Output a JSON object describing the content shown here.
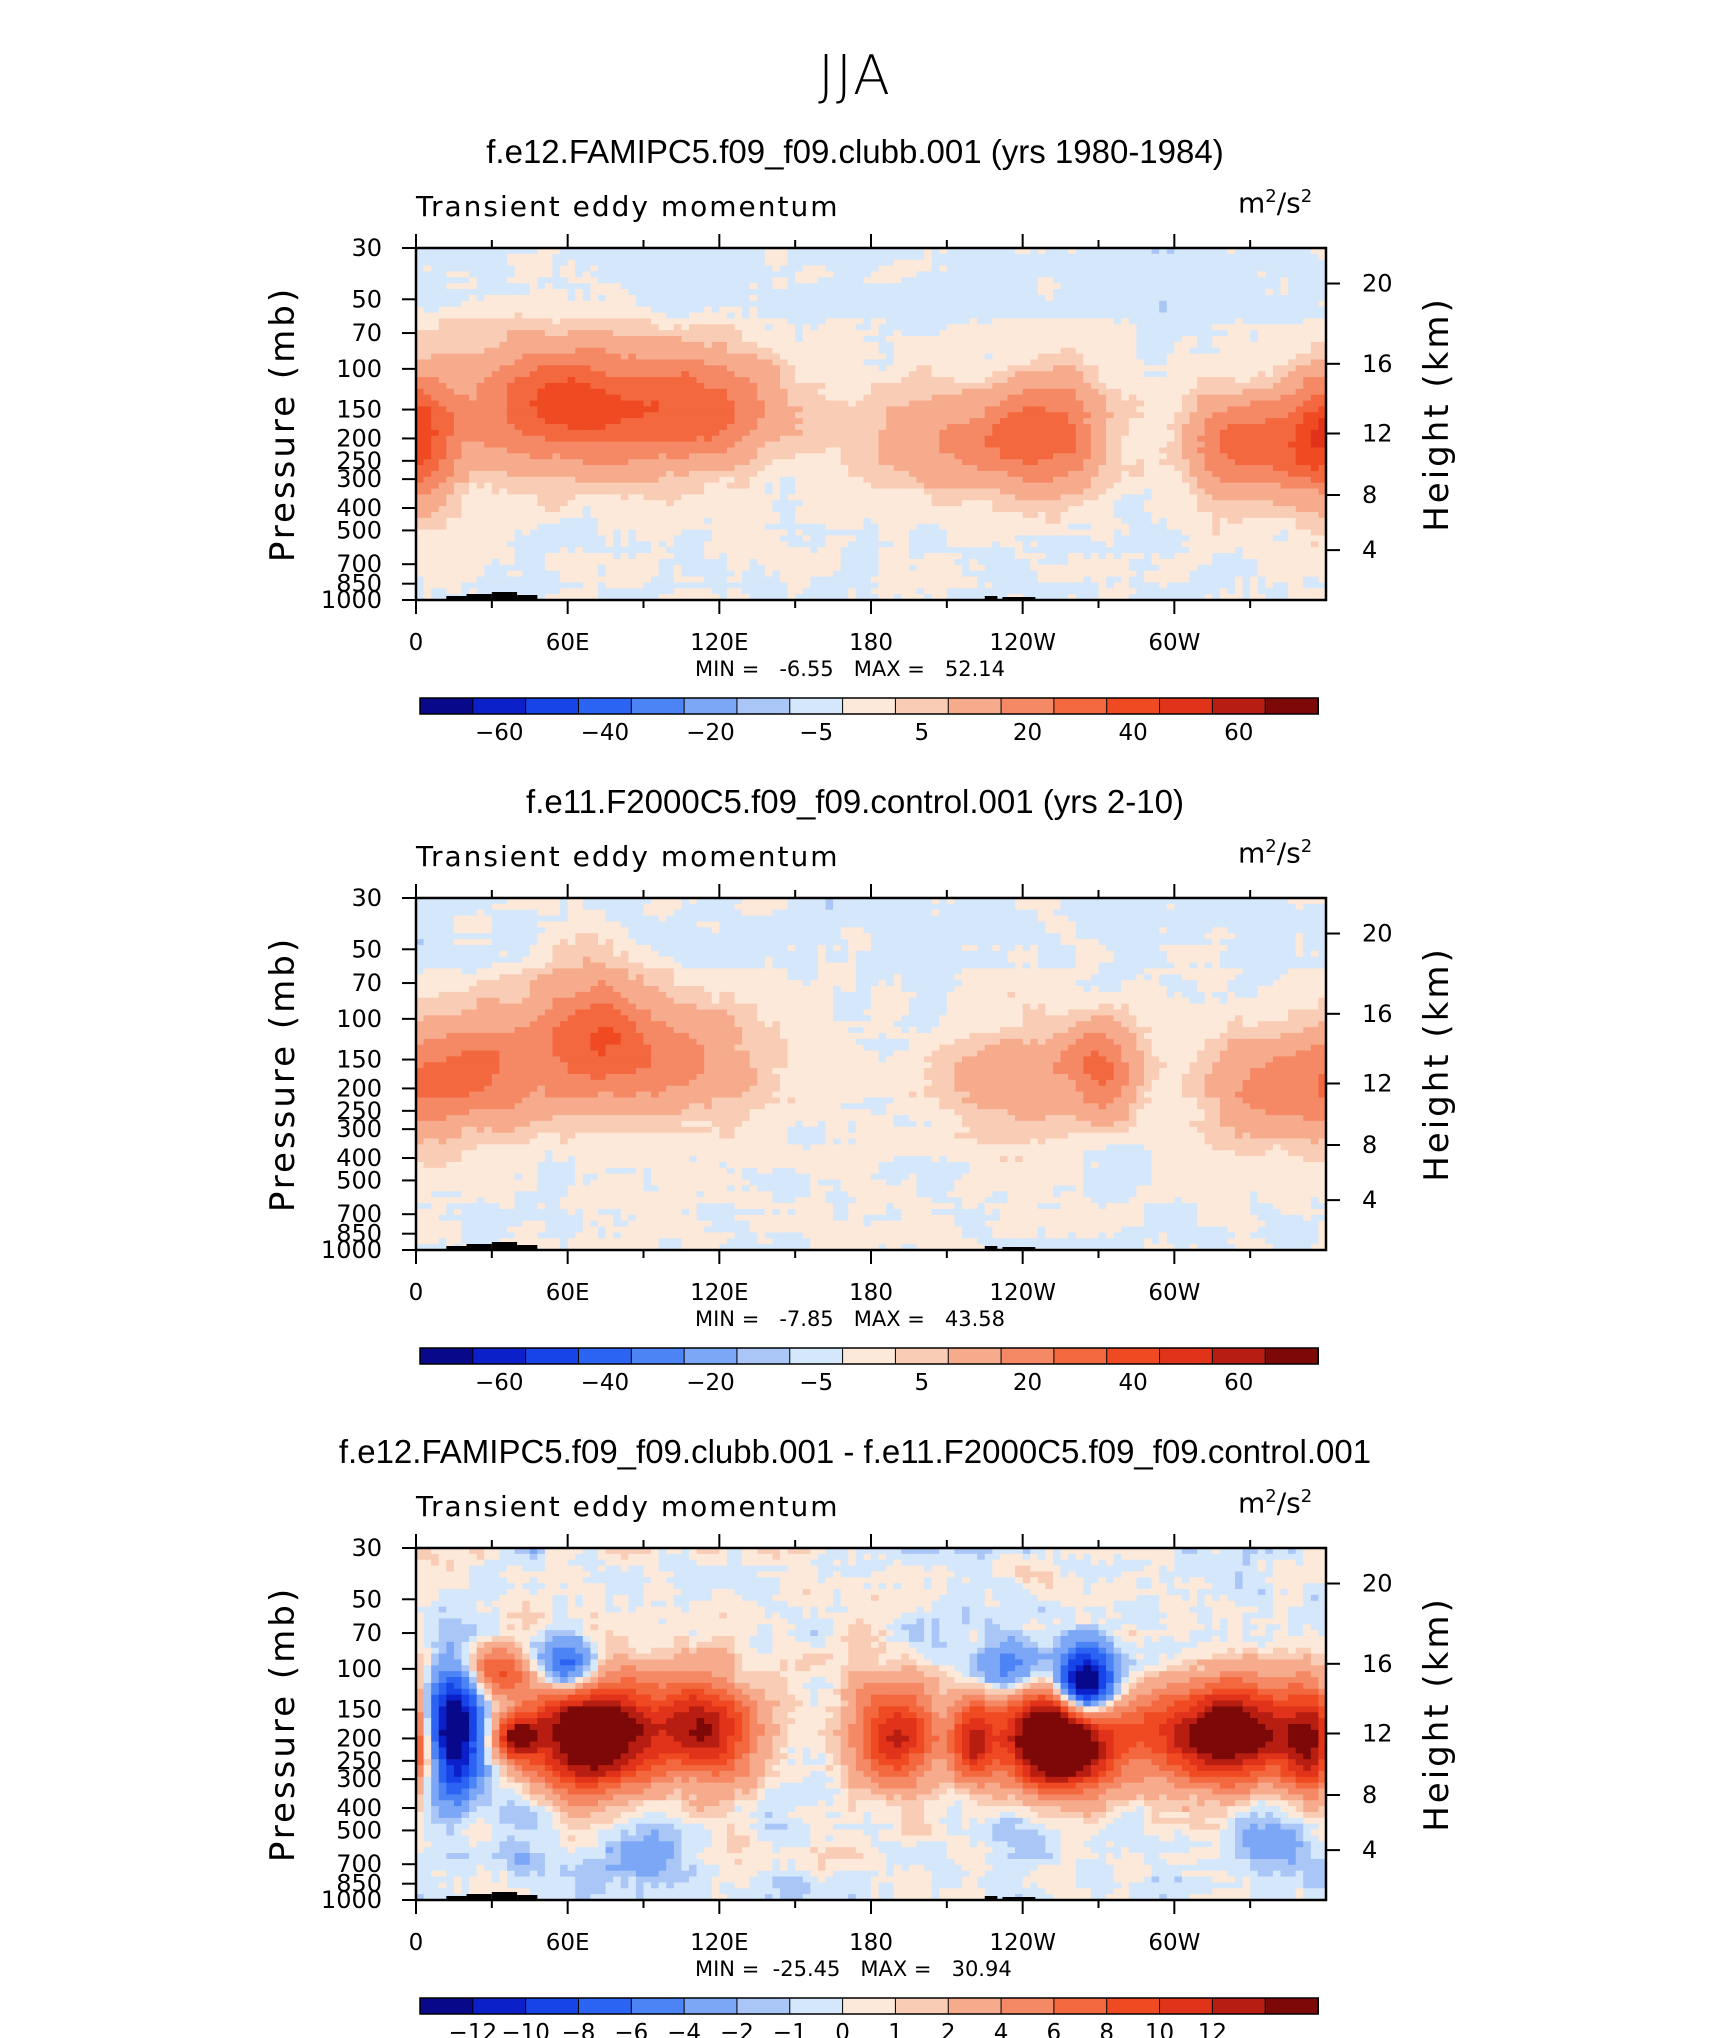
{
  "page": {
    "title": "JJA"
  },
  "chart_data": [
    {
      "type": "heatmap",
      "title": "f.e12.FAMIPC5.f09_f09.clubb.001 (yrs 1980-1984)",
      "variable": "Transient eddy momentum",
      "units": "m²/s²",
      "units_base": "m",
      "units_exp": "2",
      "units_mid": "/s",
      "units_exp2": "2",
      "xlabel": "",
      "ylabel_left": "Pressure (mb)",
      "ylabel_right": "Height (km)",
      "x_ticks": [
        "0",
        "60E",
        "120E",
        "180",
        "120W",
        "60W"
      ],
      "y_left_ticks": [
        "30",
        "50",
        "70",
        "100",
        "150",
        "200",
        "250",
        "300",
        "400",
        "500",
        "700",
        "850",
        "1000"
      ],
      "y_right_ticks": [
        "20",
        "16",
        "12",
        "8",
        "4"
      ],
      "stats": {
        "min_label": "MIN =",
        "min": "-6.55",
        "max_label": "MAX =",
        "max": "52.14"
      },
      "colorbar": {
        "labels": [
          "-60",
          "-40",
          "-20",
          "-5",
          "5",
          "20",
          "40",
          "60"
        ],
        "colors": [
          "#08088a",
          "#0b20c8",
          "#1744e8",
          "#2b63f2",
          "#4d84f5",
          "#7ca6f6",
          "#a9c6f6",
          "#d5e7fb",
          "#fde9d9",
          "#f9cdb5",
          "#f7ab8d",
          "#f58965",
          "#f3683e",
          "#ef4a22",
          "#e0331a",
          "#b71d10",
          "#7c0808"
        ]
      },
      "features": [
        {
          "lon": 25,
          "p": 150,
          "wx": 16,
          "wy": 0.55,
          "v": 14
        },
        {
          "lon": 70,
          "p": 150,
          "wx": 22,
          "wy": 0.45,
          "v": 34
        },
        {
          "lon": 115,
          "p": 150,
          "wx": 22,
          "wy": 0.4,
          "v": 32
        },
        {
          "lon": 50,
          "p": 130,
          "wx": 14,
          "wy": 0.35,
          "v": 18
        },
        {
          "lon": 2,
          "p": 200,
          "wx": 10,
          "wy": 0.45,
          "v": 26
        },
        {
          "lon": 195,
          "p": 200,
          "wx": 18,
          "wy": 0.45,
          "v": 12
        },
        {
          "lon": 222,
          "p": 210,
          "wx": 14,
          "wy": 0.3,
          "v": 16
        },
        {
          "lon": 250,
          "p": 190,
          "wx": 16,
          "wy": 0.4,
          "v": 36
        },
        {
          "lon": 325,
          "p": 215,
          "wx": 14,
          "wy": 0.35,
          "v": 34
        },
        {
          "lon": 352,
          "p": 200,
          "wx": 12,
          "wy": 0.4,
          "v": 26
        }
      ]
    },
    {
      "type": "heatmap",
      "title": "f.e11.F2000C5.f09_f09.control.001 (yrs 2-10)",
      "variable": "Transient eddy momentum",
      "units": "m²/s²",
      "units_base": "m",
      "units_exp": "2",
      "units_mid": "/s",
      "units_exp2": "2",
      "xlabel": "",
      "ylabel_left": "Pressure (mb)",
      "ylabel_right": "Height (km)",
      "x_ticks": [
        "0",
        "60E",
        "120E",
        "180",
        "120W",
        "60W"
      ],
      "y_left_ticks": [
        "30",
        "50",
        "70",
        "100",
        "150",
        "200",
        "250",
        "300",
        "400",
        "500",
        "700",
        "850",
        "1000"
      ],
      "y_right_ticks": [
        "20",
        "16",
        "12",
        "8",
        "4"
      ],
      "stats": {
        "min_label": "MIN =",
        "min": "-7.85",
        "max_label": "MAX =",
        "max": "43.58"
      },
      "colorbar": {
        "labels": [
          "-60",
          "-40",
          "-20",
          "-5",
          "5",
          "20",
          "40",
          "60"
        ],
        "colors": [
          "#08088a",
          "#0b20c8",
          "#1744e8",
          "#2b63f2",
          "#4d84f5",
          "#7ca6f6",
          "#a9c6f6",
          "#d5e7fb",
          "#fde9d9",
          "#f9cdb5",
          "#f7ab8d",
          "#f58965",
          "#f3683e",
          "#ef4a22",
          "#e0331a",
          "#b71d10",
          "#7c0808"
        ]
      },
      "features": [
        {
          "lon": 25,
          "p": 170,
          "wx": 18,
          "wy": 0.4,
          "v": 30
        },
        {
          "lon": 70,
          "p": 110,
          "wx": 16,
          "wy": 0.45,
          "v": 30
        },
        {
          "lon": 100,
          "p": 150,
          "wx": 30,
          "wy": 0.4,
          "v": 22
        },
        {
          "lon": 2,
          "p": 200,
          "wx": 10,
          "wy": 0.4,
          "v": 16
        },
        {
          "lon": 240,
          "p": 180,
          "wx": 26,
          "wy": 0.35,
          "v": 18
        },
        {
          "lon": 272,
          "p": 160,
          "wx": 10,
          "wy": 0.3,
          "v": 26
        },
        {
          "lon": 335,
          "p": 200,
          "wx": 16,
          "wy": 0.4,
          "v": 22
        }
      ]
    },
    {
      "type": "heatmap",
      "title": "f.e12.FAMIPC5.f09_f09.clubb.001 - f.e11.F2000C5.f09_f09.control.001",
      "variable": "Transient eddy momentum",
      "units": "m²/s²",
      "units_base": "m",
      "units_exp": "2",
      "units_mid": "/s",
      "units_exp2": "2",
      "xlabel": "",
      "ylabel_left": "Pressure (mb)",
      "ylabel_right": "Height (km)",
      "x_ticks": [
        "0",
        "60E",
        "120E",
        "180",
        "120W",
        "60W"
      ],
      "y_left_ticks": [
        "30",
        "50",
        "70",
        "100",
        "150",
        "200",
        "250",
        "300",
        "400",
        "500",
        "700",
        "850",
        "1000"
      ],
      "y_right_ticks": [
        "20",
        "16",
        "12",
        "8",
        "4"
      ],
      "stats": {
        "min_label": "MIN =",
        "min": "-25.45",
        "max_label": "MAX =",
        "max": "30.94"
      },
      "colorbar": {
        "labels": [
          "-12",
          "-10",
          "-8",
          "-6",
          "-4",
          "-2",
          "-1",
          "0",
          "1",
          "2",
          "4",
          "6",
          "8",
          "10",
          "12"
        ],
        "colors": [
          "#08088a",
          "#0b20c8",
          "#1744e8",
          "#2b63f2",
          "#4d84f5",
          "#7ca6f6",
          "#a9c6f6",
          "#d5e7fb",
          "#fde9d9",
          "#f9cdb5",
          "#f7ab8d",
          "#f58965",
          "#f3683e",
          "#ef4a22",
          "#e0331a",
          "#b71d10",
          "#7c0808"
        ]
      },
      "features": [
        {
          "lon": 15,
          "p": 180,
          "wx": 8,
          "wy": 0.45,
          "v": -16
        },
        {
          "lon": 60,
          "p": 100,
          "wx": 9,
          "wy": 0.2,
          "v": -12
        },
        {
          "lon": 30,
          "p": 100,
          "wx": 10,
          "wy": 0.18,
          "v": 8
        },
        {
          "lon": 70,
          "p": 190,
          "wx": 18,
          "wy": 0.4,
          "v": 20
        },
        {
          "lon": 115,
          "p": 180,
          "wx": 14,
          "wy": 0.35,
          "v": 14
        },
        {
          "lon": 190,
          "p": 190,
          "wx": 12,
          "wy": 0.35,
          "v": 12
        },
        {
          "lon": 220,
          "p": 210,
          "wx": 6,
          "wy": 0.3,
          "v": 10
        },
        {
          "lon": 255,
          "p": 200,
          "wx": 16,
          "wy": 0.35,
          "v": 24
        },
        {
          "lon": 265,
          "p": 120,
          "wx": 8,
          "wy": 0.25,
          "v": -20
        },
        {
          "lon": 235,
          "p": 100,
          "wx": 10,
          "wy": 0.2,
          "v": -6
        },
        {
          "lon": 320,
          "p": 190,
          "wx": 20,
          "wy": 0.35,
          "v": 18
        },
        {
          "lon": 355,
          "p": 210,
          "wx": 8,
          "wy": 0.4,
          "v": 12
        },
        {
          "lon": 40,
          "p": 200,
          "wx": 6,
          "wy": 0.15,
          "v": 12
        },
        {
          "lon": 40,
          "p": 480,
          "wx": 10,
          "wy": 0.35,
          "v": -2.5
        },
        {
          "lon": 90,
          "p": 600,
          "wx": 14,
          "wy": 0.3,
          "v": -3
        },
        {
          "lon": 240,
          "p": 500,
          "wx": 12,
          "wy": 0.3,
          "v": -2
        },
        {
          "lon": 340,
          "p": 550,
          "wx": 14,
          "wy": 0.35,
          "v": -3
        }
      ]
    }
  ]
}
